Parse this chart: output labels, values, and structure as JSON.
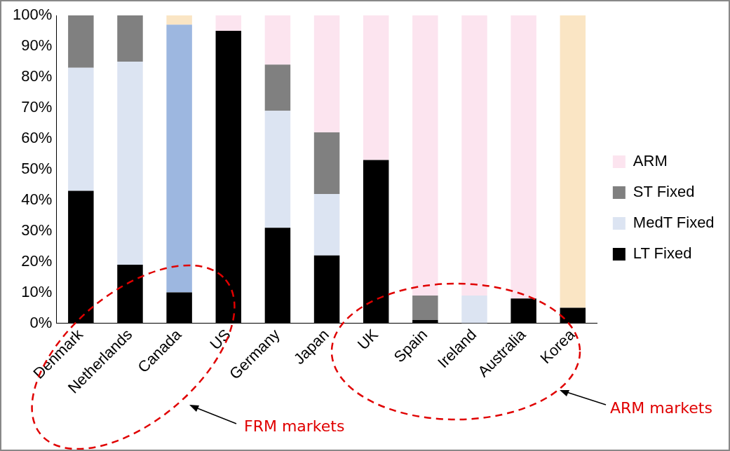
{
  "chart_data": {
    "type": "bar",
    "stacked": true,
    "categories": [
      "Denmark",
      "Netherlands",
      "Canada",
      "US",
      "Germany",
      "Japan",
      "UK",
      "Spain",
      "Ireland",
      "Australia",
      "Korea"
    ],
    "series": [
      {
        "name": "LT Fixed",
        "color": "#000000",
        "values": [
          43,
          19,
          10,
          95,
          31,
          22,
          53,
          1,
          0,
          8,
          5
        ]
      },
      {
        "name": "MedT Fixed",
        "color": "#dce4f2",
        "colors": [
          "#dce4f2",
          "#dce4f2",
          "#9db7e0",
          "#dce4f2",
          "#dce4f2",
          "#dce4f2",
          "#dce4f2",
          "#dce4f2",
          "#dce4f2",
          "#dce4f2",
          "#dce4f2"
        ],
        "values": [
          40,
          66,
          87,
          0,
          38,
          20,
          0,
          0,
          9,
          0,
          0
        ]
      },
      {
        "name": "ST Fixed",
        "color": "#808080",
        "values": [
          17,
          15,
          0,
          0,
          15,
          20,
          0,
          8,
          0,
          0,
          0
        ]
      },
      {
        "name": "ARM",
        "color": "#fce4ef",
        "colors": [
          "#fce4ef",
          "#fce4ef",
          "#fae5c4",
          "#fce4ef",
          "#fce4ef",
          "#fce4ef",
          "#fce4ef",
          "#fce4ef",
          "#fce4ef",
          "#fce4ef",
          "#fae5c4"
        ],
        "values": [
          0,
          0,
          3,
          5,
          16,
          38,
          47,
          91,
          91,
          92,
          95
        ]
      }
    ],
    "ylim": [
      0,
      100
    ],
    "yticks": [
      {
        "value": 0,
        "label": "0%"
      },
      {
        "value": 10,
        "label": "10%"
      },
      {
        "value": 20,
        "label": "20%"
      },
      {
        "value": 30,
        "label": "30%"
      },
      {
        "value": 40,
        "label": "40%"
      },
      {
        "value": 50,
        "label": "50%"
      },
      {
        "value": 60,
        "label": "60%"
      },
      {
        "value": 70,
        "label": "70%"
      },
      {
        "value": 80,
        "label": "80%"
      },
      {
        "value": 90,
        "label": "90%"
      },
      {
        "value": 100,
        "label": "100%"
      }
    ],
    "grid": false,
    "legend": "right",
    "annotations": [
      "FRM markets",
      "ARM markets"
    ]
  }
}
